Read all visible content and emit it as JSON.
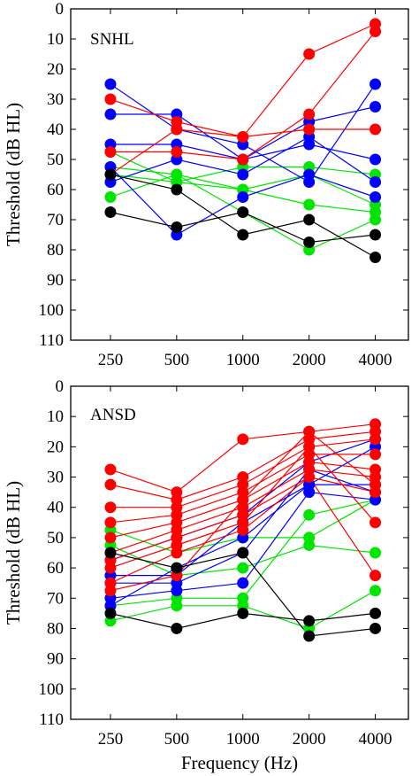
{
  "chart_data": [
    {
      "type": "line",
      "panel_label": "SNHL",
      "xlabel": "",
      "ylabel": "Threshold (dB HL)",
      "categories": [
        "250",
        "500",
        "1000",
        "2000",
        "4000"
      ],
      "ylim": [
        110,
        0
      ],
      "yticks": [
        "0",
        "10",
        "20",
        "30",
        "40",
        "50",
        "60",
        "70",
        "80",
        "90",
        "100",
        "110"
      ],
      "colors": {
        "red": "#ff0000",
        "blue": "#0000ff",
        "green": "#00e600",
        "black": "#000000"
      },
      "series": [
        {
          "color": "red",
          "values": [
            30,
            37.5,
            42.5,
            15,
            5
          ]
        },
        {
          "color": "red",
          "values": [
            47.5,
            47.5,
            50,
            35,
            7.5
          ]
        },
        {
          "color": "red",
          "values": [
            55,
            40,
            42.5,
            40,
            40
          ]
        },
        {
          "color": "blue",
          "values": [
            25,
            40,
            45,
            57.5,
            25
          ]
        },
        {
          "color": "blue",
          "values": [
            35,
            35,
            50,
            37.5,
            32.5
          ]
        },
        {
          "color": "blue",
          "values": [
            45,
            45,
            50,
            45,
            50
          ]
        },
        {
          "color": "blue",
          "values": [
            57.5,
            50,
            55,
            42.5,
            57.5
          ]
        },
        {
          "color": "blue",
          "values": [
            52.5,
            75,
            62.5,
            55,
            62.5
          ]
        },
        {
          "color": "green",
          "values": [
            47.5,
            57.5,
            52.5,
            52.5,
            55
          ]
        },
        {
          "color": "green",
          "values": [
            52.5,
            55,
            60,
            55,
            65
          ]
        },
        {
          "color": "green",
          "values": [
            62.5,
            55,
            67.5,
            80,
            70
          ]
        },
        {
          "color": "green",
          "values": [
            55,
            57.5,
            60,
            65,
            67.5
          ]
        },
        {
          "color": "black",
          "values": [
            55,
            60,
            75,
            70,
            82.5
          ]
        },
        {
          "color": "black",
          "values": [
            67.5,
            72.5,
            67.5,
            77.5,
            75
          ]
        }
      ]
    },
    {
      "type": "line",
      "panel_label": "ANSD",
      "xlabel": "Frequency (Hz)",
      "ylabel": "Threshold (dB HL)",
      "categories": [
        "250",
        "500",
        "1000",
        "2000",
        "4000"
      ],
      "ylim": [
        110,
        0
      ],
      "yticks": [
        "0",
        "10",
        "20",
        "30",
        "40",
        "50",
        "60",
        "70",
        "80",
        "90",
        "100",
        "110"
      ],
      "colors": {
        "red": "#ff0000",
        "blue": "#0000ff",
        "green": "#00e600",
        "black": "#000000"
      },
      "series": [
        {
          "color": "red",
          "values": [
            27.5,
            35,
            17.5,
            15,
            12.5
          ]
        },
        {
          "color": "red",
          "values": [
            32.5,
            37.5,
            30,
            17.5,
            15
          ]
        },
        {
          "color": "red",
          "values": [
            40,
            40,
            32.5,
            20,
            17.5
          ]
        },
        {
          "color": "red",
          "values": [
            45,
            42.5,
            35,
            22.5,
            22.5
          ]
        },
        {
          "color": "red",
          "values": [
            50,
            45,
            37.5,
            25,
            27.5
          ]
        },
        {
          "color": "red",
          "values": [
            55,
            47.5,
            40,
            27.5,
            30
          ]
        },
        {
          "color": "red",
          "values": [
            57.5,
            50,
            42.5,
            30,
            35
          ]
        },
        {
          "color": "red",
          "values": [
            60,
            52.5,
            45,
            20,
            45
          ]
        },
        {
          "color": "red",
          "values": [
            65,
            55,
            47.5,
            30,
            62.5
          ]
        },
        {
          "color": "red",
          "values": [
            67.5,
            62.5,
            37.5,
            15,
            32.5
          ]
        },
        {
          "color": "blue",
          "values": [
            57.5,
            50,
            42.5,
            25,
            17.5
          ]
        },
        {
          "color": "blue",
          "values": [
            62.5,
            62.5,
            45,
            32.5,
            32.5
          ]
        },
        {
          "color": "blue",
          "values": [
            65,
            65,
            55,
            27.5,
            35
          ]
        },
        {
          "color": "blue",
          "values": [
            70,
            67.5,
            65,
            35,
            37.5
          ]
        },
        {
          "color": "blue",
          "values": [
            72.5,
            60,
            50,
            32.5,
            20
          ]
        },
        {
          "color": "green",
          "values": [
            47.5,
            55,
            50,
            50,
            37.5
          ]
        },
        {
          "color": "green",
          "values": [
            52.5,
            62.5,
            60,
            52.5,
            55
          ]
        },
        {
          "color": "green",
          "values": [
            72.5,
            70,
            70,
            42.5,
            37.5
          ]
        },
        {
          "color": "green",
          "values": [
            77.5,
            72.5,
            72.5,
            80,
            67.5
          ]
        },
        {
          "color": "black",
          "values": [
            55,
            60,
            55,
            82.5,
            80
          ]
        },
        {
          "color": "black",
          "values": [
            75,
            80,
            75,
            77.5,
            75
          ]
        }
      ]
    }
  ]
}
